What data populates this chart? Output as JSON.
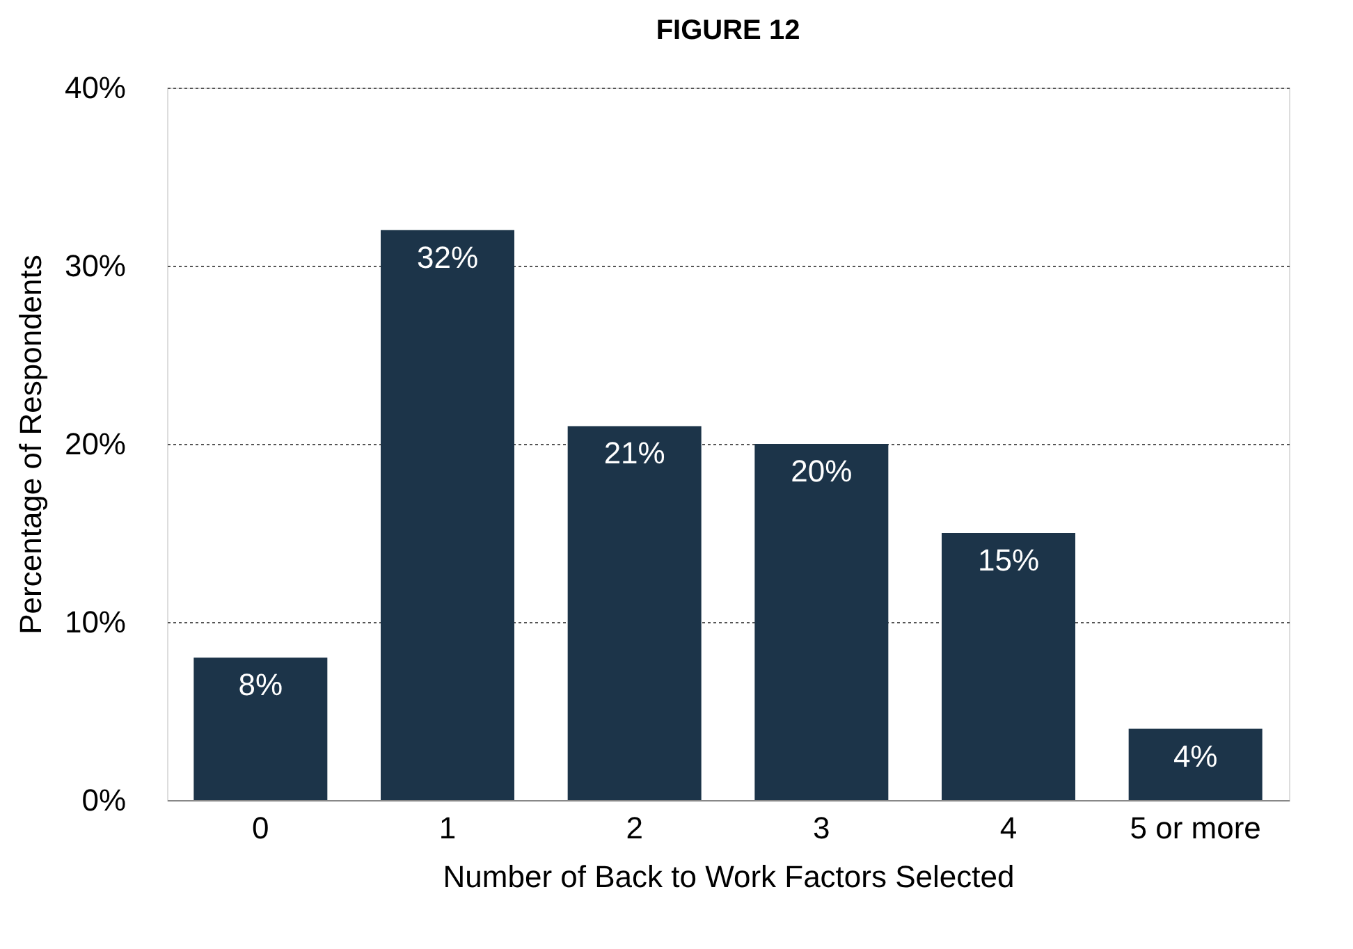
{
  "chart_data": {
    "type": "bar",
    "title": "FIGURE 12",
    "xlabel": "Number of Back to Work Factors Selected",
    "ylabel": "Percentage of Respondents",
    "categories": [
      "0",
      "1",
      "2",
      "3",
      "4",
      "5 or more"
    ],
    "values": [
      8,
      32,
      21,
      20,
      15,
      4
    ],
    "value_labels": [
      "8%",
      "32%",
      "21%",
      "20%",
      "15%",
      "4%"
    ],
    "color": "#1c3449",
    "ylim": [
      0,
      40
    ],
    "yticks": [
      {
        "value": 0,
        "label": "0%"
      },
      {
        "value": 10,
        "label": "10%"
      },
      {
        "value": 20,
        "label": "20%"
      },
      {
        "value": 30,
        "label": "30%"
      },
      {
        "value": 40,
        "label": "40%"
      }
    ],
    "grid": "y"
  }
}
